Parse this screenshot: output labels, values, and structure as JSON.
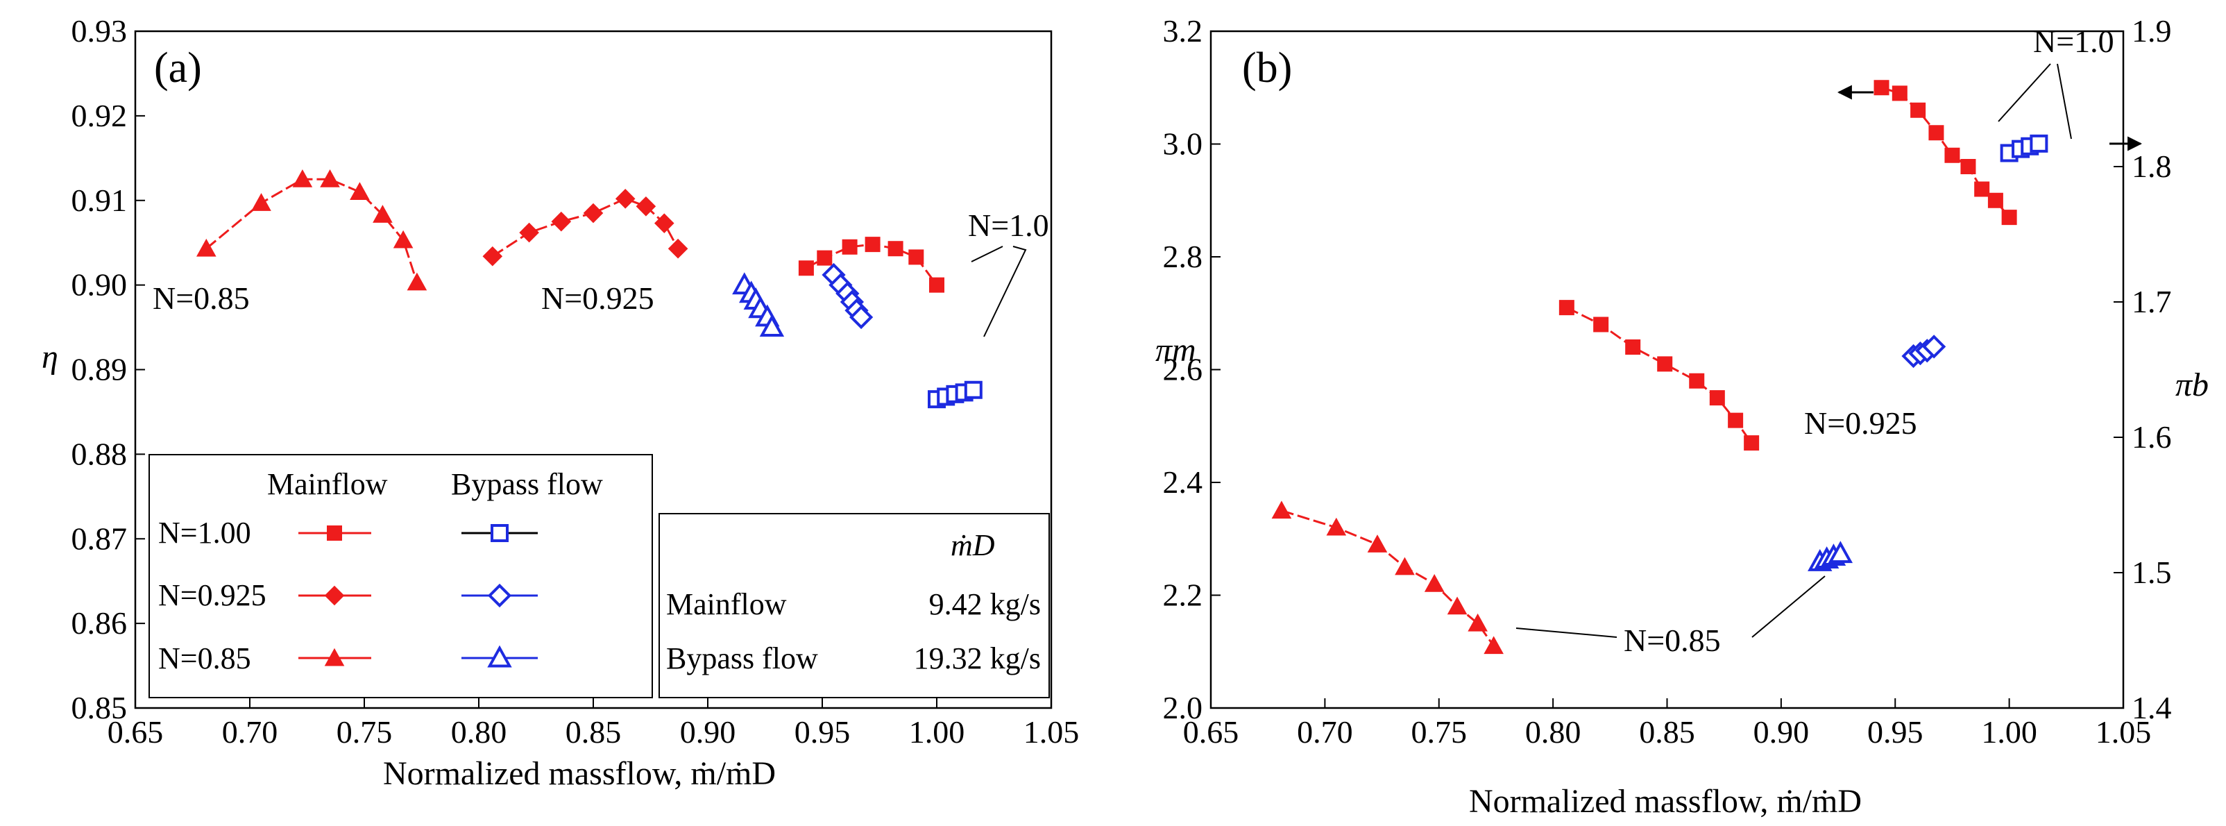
{
  "chart_data": [
    {
      "type": "line",
      "panel_label": "(a)",
      "xlabel": "Normalized massflow, ṁ/ṁD",
      "ylabel": "η",
      "xlim": [
        0.65,
        1.05
      ],
      "ylim": [
        0.85,
        0.93
      ],
      "xticks": [
        "0.65",
        "0.70",
        "0.75",
        "0.80",
        "0.85",
        "0.90",
        "0.95",
        "1.00",
        "1.05"
      ],
      "yticks": [
        "0.85",
        "0.86",
        "0.87",
        "0.88",
        "0.89",
        "0.90",
        "0.91",
        "0.92",
        "0.93"
      ],
      "series": [
        {
          "name": "Mainflow N=1.00",
          "color": "#ee1c1c",
          "marker": "square",
          "filled": true,
          "x": [
            0.943,
            0.951,
            0.962,
            0.972,
            0.982,
            0.991,
            1.0
          ],
          "y": [
            0.902,
            0.9032,
            0.9045,
            0.9048,
            0.9043,
            0.9033,
            0.9
          ]
        },
        {
          "name": "Mainflow N=0.925",
          "color": "#ee1c1c",
          "marker": "diamond",
          "filled": true,
          "x": [
            0.806,
            0.822,
            0.836,
            0.85,
            0.864,
            0.873,
            0.881,
            0.887
          ],
          "y": [
            0.9034,
            0.9062,
            0.9075,
            0.9085,
            0.9102,
            0.9093,
            0.9073,
            0.9043
          ]
        },
        {
          "name": "Mainflow N=0.85",
          "color": "#ee1c1c",
          "marker": "triangle",
          "filled": true,
          "x": [
            0.681,
            0.705,
            0.723,
            0.735,
            0.748,
            0.758,
            0.767,
            0.773
          ],
          "y": [
            0.9043,
            0.9097,
            0.9125,
            0.9125,
            0.911,
            0.9083,
            0.9053,
            0.9003
          ]
        },
        {
          "name": "Bypass flow N=1.00",
          "color": "#1d2be0",
          "marker": "square",
          "filled": false,
          "x": [
            1.0,
            1.004,
            1.008,
            1.012,
            1.016
          ],
          "y": [
            0.8865,
            0.8868,
            0.8871,
            0.8873,
            0.8876
          ]
        },
        {
          "name": "Bypass flow N=0.925",
          "color": "#1d2be0",
          "marker": "diamond",
          "filled": false,
          "x": [
            0.955,
            0.958,
            0.961,
            0.963,
            0.965,
            0.967
          ],
          "y": [
            0.9012,
            0.9,
            0.899,
            0.898,
            0.897,
            0.8962
          ]
        },
        {
          "name": "Bypass flow N=0.85",
          "color": "#1d2be0",
          "marker": "triangle",
          "filled": false,
          "x": [
            0.916,
            0.919,
            0.921,
            0.923,
            0.926,
            0.928
          ],
          "y": [
            0.9,
            0.899,
            0.8982,
            0.8972,
            0.8962,
            0.895
          ]
        }
      ],
      "annotations": [
        {
          "text": "N=0.85",
          "pos": "left of N=0.85 curve"
        },
        {
          "text": "N=0.925",
          "pos": "below N=0.925 curve"
        },
        {
          "text": "N=1.0",
          "pos": "above right, with leader lines"
        }
      ],
      "legend": {
        "position": "bottom-left",
        "col_mainflow": "Mainflow",
        "col_bypass": "Bypass flow",
        "rows": [
          "N=1.00",
          "N=0.925",
          "N=0.85"
        ]
      },
      "design_table": {
        "position": "bottom-center",
        "header": "ṁD",
        "rows": [
          {
            "label": "Mainflow",
            "value": "9.42 kg/s"
          },
          {
            "label": "Bypass flow",
            "value": "19.32 kg/s"
          }
        ]
      }
    },
    {
      "type": "line",
      "panel_label": "(b)",
      "xlabel": "Normalized massflow, ṁ/ṁD",
      "ylabel_left": "πm",
      "ylabel_right": "πb",
      "xlim": [
        0.65,
        1.05
      ],
      "ylim_left": [
        2.0,
        3.2
      ],
      "ylim_right": [
        1.4,
        1.9
      ],
      "xticks": [
        "0.65",
        "0.70",
        "0.75",
        "0.80",
        "0.85",
        "0.90",
        "0.95",
        "1.00",
        "1.05"
      ],
      "yticks_left": [
        "2.0",
        "2.2",
        "2.4",
        "2.6",
        "2.8",
        "3.0",
        "3.2"
      ],
      "yticks_right": [
        "1.4",
        "1.5",
        "1.6",
        "1.7",
        "1.8",
        "1.9"
      ],
      "series": [
        {
          "name": "Mainflow N=1.00",
          "axis": "left",
          "color": "#ee1c1c",
          "marker": "square",
          "filled": true,
          "x": [
            0.944,
            0.952,
            0.96,
            0.968,
            0.975,
            0.982,
            0.988,
            0.994,
            1.0
          ],
          "y": [
            3.1,
            3.09,
            3.06,
            3.02,
            2.98,
            2.96,
            2.92,
            2.9,
            2.87
          ]
        },
        {
          "name": "Mainflow N=0.925",
          "axis": "left",
          "color": "#ee1c1c",
          "marker": "square",
          "filled": true,
          "x": [
            0.806,
            0.821,
            0.835,
            0.849,
            0.863,
            0.872,
            0.88,
            0.887
          ],
          "y": [
            2.71,
            2.68,
            2.64,
            2.61,
            2.58,
            2.55,
            2.51,
            2.47
          ]
        },
        {
          "name": "Mainflow N=0.85",
          "axis": "left",
          "color": "#ee1c1c",
          "marker": "triangle",
          "filled": true,
          "x": [
            0.681,
            0.705,
            0.723,
            0.735,
            0.748,
            0.758,
            0.767,
            0.774
          ],
          "y": [
            2.35,
            2.32,
            2.29,
            2.25,
            2.22,
            2.18,
            2.15,
            2.11
          ]
        },
        {
          "name": "Bypass flow N=1.00",
          "axis": "right",
          "color": "#1d2be0",
          "marker": "square",
          "filled": false,
          "x": [
            1.0,
            1.005,
            1.009,
            1.013
          ],
          "y": [
            1.81,
            1.813,
            1.815,
            1.817
          ]
        },
        {
          "name": "Bypass flow N=0.925",
          "axis": "right",
          "color": "#1d2be0",
          "marker": "diamond",
          "filled": false,
          "x": [
            0.958,
            0.961,
            0.964,
            0.967
          ],
          "y": [
            1.66,
            1.662,
            1.664,
            1.667
          ]
        },
        {
          "name": "Bypass flow N=0.85",
          "axis": "right",
          "color": "#1d2be0",
          "marker": "triangle",
          "filled": false,
          "x": [
            0.917,
            0.92,
            0.923,
            0.926
          ],
          "y": [
            1.508,
            1.51,
            1.512,
            1.514
          ]
        }
      ],
      "annotations": [
        {
          "text": "N=1.0",
          "pos": "top-right, with arrows to left and right axes"
        },
        {
          "text": "N=0.925",
          "pos": "right of N=0.925 curve"
        },
        {
          "text": "N=0.85",
          "pos": "bottom, leader lines to both curves"
        }
      ]
    }
  ]
}
